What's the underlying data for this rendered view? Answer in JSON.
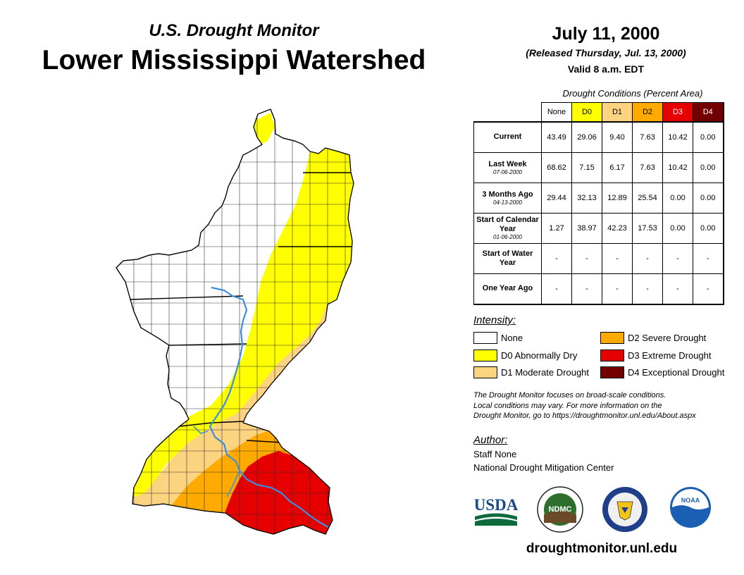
{
  "header": {
    "subtitle": "U.S. Drought Monitor",
    "title": "Lower Mississippi Watershed",
    "date": "July 11, 2000",
    "released": "(Released Thursday, Jul. 13, 2000)",
    "valid": "Valid 8 a.m. EDT"
  },
  "conditions": {
    "caption": "Drought Conditions (Percent Area)",
    "columns": [
      "None",
      "D0",
      "D1",
      "D2",
      "D3",
      "D4"
    ],
    "rows": [
      {
        "label": "Current",
        "sub": "",
        "values": [
          "43.49",
          "29.06",
          "9.40",
          "7.63",
          "10.42",
          "0.00"
        ]
      },
      {
        "label": "Last Week",
        "sub": "07-06-2000",
        "values": [
          "68.62",
          "7.15",
          "6.17",
          "7.63",
          "10.42",
          "0.00"
        ]
      },
      {
        "label": "3 Months Ago",
        "sub": "04-13-2000",
        "values": [
          "29.44",
          "32.13",
          "12.89",
          "25.54",
          "0.00",
          "0.00"
        ]
      },
      {
        "label": "Start of Calendar Year",
        "sub": "01-06-2000",
        "values": [
          "1.27",
          "38.97",
          "42.23",
          "17.53",
          "0.00",
          "0.00"
        ]
      },
      {
        "label": "Start of Water Year",
        "sub": "",
        "values": [
          "-",
          "-",
          "-",
          "-",
          "-",
          "-"
        ]
      },
      {
        "label": "One Year Ago",
        "sub": "",
        "values": [
          "-",
          "-",
          "-",
          "-",
          "-",
          "-"
        ]
      }
    ]
  },
  "legend": {
    "label": "Intensity:",
    "items": [
      {
        "label": "None",
        "color": "#ffffff"
      },
      {
        "label": "D0 Abnormally Dry",
        "color": "#ffff00"
      },
      {
        "label": "D1 Moderate Drought",
        "color": "#fcd37f"
      },
      {
        "label": "D2 Severe Drought",
        "color": "#ffaa00"
      },
      {
        "label": "D3 Extreme Drought",
        "color": "#e60000"
      },
      {
        "label": "D4 Exceptional Drought",
        "color": "#730000"
      }
    ]
  },
  "note": {
    "line1": "The Drought Monitor focuses on broad-scale conditions.",
    "line2": "Local conditions may vary. For more information on the",
    "line3": "Drought Monitor, go to https://droughtmonitor.unl.edu/About.aspx"
  },
  "author": {
    "label": "Author:",
    "name": "Staff None",
    "org": "National Drought Mitigation Center"
  },
  "logos": {
    "usda": "USDA",
    "ndmc": "NDMC",
    "noaa": "NOAA"
  },
  "footer": {
    "url": "droughtmonitor.unl.edu"
  }
}
